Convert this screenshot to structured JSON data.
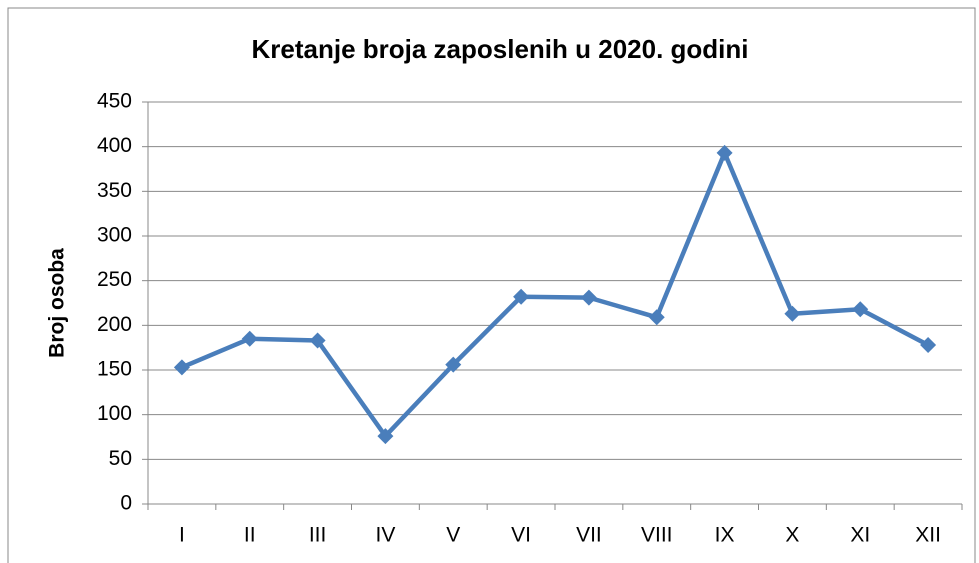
{
  "chart_data": {
    "type": "line",
    "title": "Kretanje broja zaposlenih u 2020. godini",
    "y_label": "Broj osoba",
    "categories": [
      "I",
      "II",
      "III",
      "IV",
      "V",
      "VI",
      "VII",
      "VIII",
      "IX",
      "X",
      "XI",
      "XII"
    ],
    "series": [
      {
        "name": "Broj osoba",
        "color": "#4a7ebb",
        "values": [
          153,
          185,
          183,
          76,
          156,
          232,
          231,
          209,
          393,
          213,
          218,
          178
        ]
      }
    ],
    "ylim": [
      0,
      450
    ],
    "yticks": [
      0,
      50,
      100,
      150,
      200,
      250,
      300,
      350,
      400,
      450
    ],
    "grid": true
  }
}
